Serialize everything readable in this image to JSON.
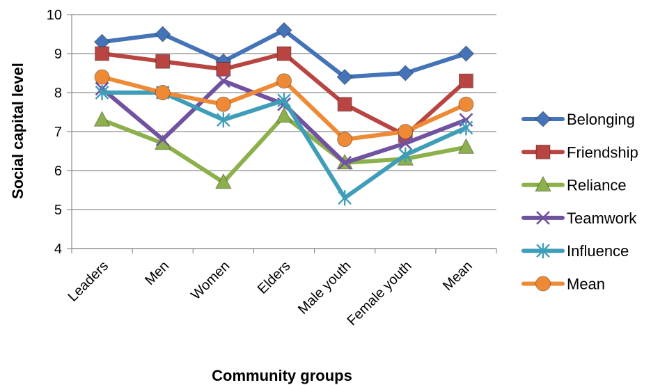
{
  "chart_data": {
    "type": "line",
    "title": "",
    "xlabel": "Community groups",
    "ylabel": "Social capital level",
    "ylim": [
      4,
      10
    ],
    "yticks": [
      4,
      5,
      6,
      7,
      8,
      9,
      10
    ],
    "grid": true,
    "legend_position": "right",
    "categories": [
      "Leaders",
      "Men",
      "Women",
      "Elders",
      "Male youth",
      "Female youth",
      "Mean"
    ],
    "series": [
      {
        "name": "Belonging",
        "color": "#4573B8",
        "marker": "diamond",
        "values": [
          9.3,
          9.5,
          8.8,
          9.6,
          8.4,
          8.5,
          9.0
        ]
      },
      {
        "name": "Friendship",
        "color": "#B84541",
        "marker": "square",
        "values": [
          9.0,
          8.8,
          8.6,
          9.0,
          7.7,
          6.9,
          8.3
        ]
      },
      {
        "name": "Reliance",
        "color": "#8CB04B",
        "marker": "triangle",
        "values": [
          7.3,
          6.7,
          5.7,
          7.4,
          6.2,
          6.3,
          6.6
        ]
      },
      {
        "name": "Teamwork",
        "color": "#7152A0",
        "marker": "x",
        "values": [
          8.1,
          6.8,
          8.3,
          7.7,
          6.2,
          6.7,
          7.3
        ]
      },
      {
        "name": "Influence",
        "color": "#3E9DB8",
        "marker": "star",
        "values": [
          8.0,
          8.0,
          7.3,
          7.8,
          5.3,
          6.4,
          7.1
        ]
      },
      {
        "name": "Mean",
        "color": "#EE8A35",
        "marker": "circle",
        "values": [
          8.4,
          8.0,
          7.7,
          8.3,
          6.8,
          7.0,
          7.7
        ]
      }
    ]
  }
}
